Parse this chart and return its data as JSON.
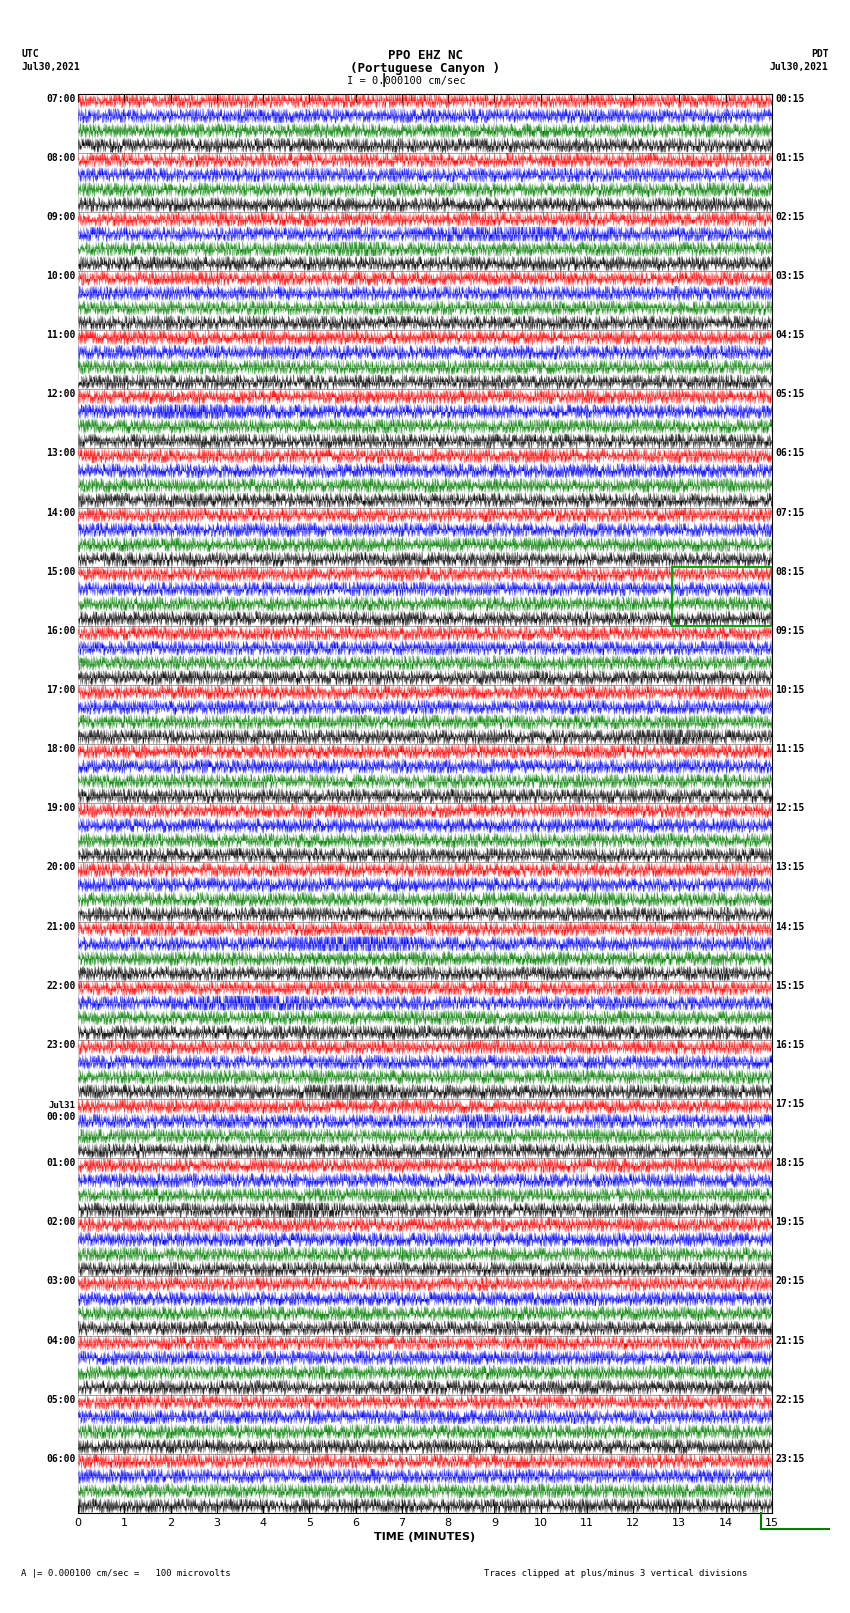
{
  "title_line1": "PPO EHZ NC",
  "title_line2": "(Portuguese Canyon )",
  "scale_label": "I = 0.000100 cm/sec",
  "label_left_top1": "UTC",
  "label_left_top2": "Jul30,2021",
  "label_right_top1": "PDT",
  "label_right_top2": "Jul30,2021",
  "xlabel": "TIME (MINUTES)",
  "footer_left": "A |= 0.000100 cm/sec =   100 microvolts",
  "footer_right": "Traces clipped at plus/minus 3 vertical divisions",
  "bg_color": "white",
  "plot_bg_color": "white",
  "left_time_labels": [
    "07:00",
    "08:00",
    "09:00",
    "10:00",
    "11:00",
    "12:00",
    "13:00",
    "14:00",
    "15:00",
    "16:00",
    "17:00",
    "18:00",
    "19:00",
    "20:00",
    "21:00",
    "22:00",
    "23:00",
    "Jul31\n00:00",
    "01:00",
    "02:00",
    "03:00",
    "04:00",
    "05:00",
    "06:00"
  ],
  "right_time_labels": [
    "00:15",
    "01:15",
    "02:15",
    "03:15",
    "04:15",
    "05:15",
    "06:15",
    "07:15",
    "08:15",
    "09:15",
    "10:15",
    "11:15",
    "12:15",
    "13:15",
    "14:15",
    "15:15",
    "16:15",
    "17:15",
    "18:15",
    "19:15",
    "20:15",
    "21:15",
    "22:15",
    "23:15"
  ],
  "colors_cycle": [
    "red",
    "blue",
    "green",
    "black"
  ],
  "n_traces_per_row": 4,
  "seed": 42,
  "n_samples": 3000
}
